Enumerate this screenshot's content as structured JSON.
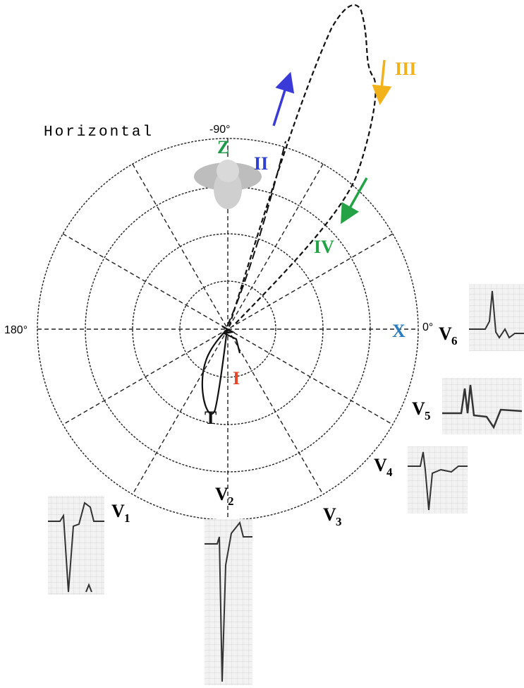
{
  "title": "Horizontal",
  "angles": {
    "top": "-90°",
    "left": "180°",
    "right": "0°"
  },
  "axes": {
    "z": "Z",
    "x": "X"
  },
  "phases": {
    "i": "I",
    "ii": "II",
    "iii": "III",
    "iv": "IV"
  },
  "t_loop": "T",
  "leads": [
    {
      "letter": "V",
      "sub": "1"
    },
    {
      "letter": "V",
      "sub": "2"
    },
    {
      "letter": "V",
      "sub": "3"
    },
    {
      "letter": "V",
      "sub": "4"
    },
    {
      "letter": "V",
      "sub": "5"
    },
    {
      "letter": "V",
      "sub": "6"
    }
  ]
}
